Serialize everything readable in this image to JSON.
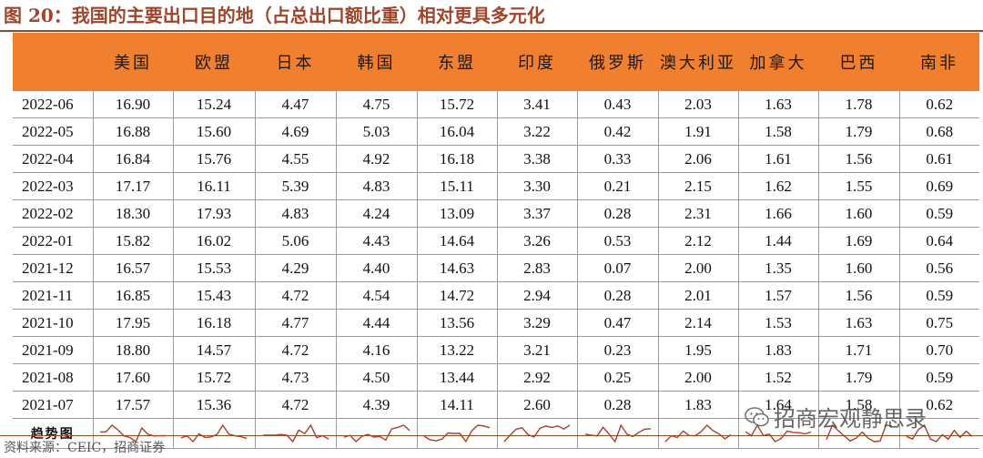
{
  "title": "图 20：我国的主要出口目的地（占总出口额比重）相对更具多元化",
  "columns": [
    "",
    "美国",
    "欧盟",
    "日本",
    "韩国",
    "东盟",
    "印度",
    "俄罗斯",
    "澳大利亚",
    "加拿大",
    "巴西",
    "南非"
  ],
  "rows": [
    {
      "date": "2022-06",
      "values": [
        "16.90",
        "15.24",
        "4.47",
        "4.75",
        "15.72",
        "3.41",
        "0.43",
        "2.03",
        "1.63",
        "1.78",
        "0.62"
      ]
    },
    {
      "date": "2022-05",
      "values": [
        "16.88",
        "15.60",
        "4.69",
        "5.03",
        "16.04",
        "3.22",
        "0.42",
        "1.91",
        "1.58",
        "1.79",
        "0.68"
      ]
    },
    {
      "date": "2022-04",
      "values": [
        "16.84",
        "15.76",
        "4.55",
        "4.92",
        "16.18",
        "3.38",
        "0.33",
        "2.06",
        "1.61",
        "1.56",
        "0.61"
      ]
    },
    {
      "date": "2022-03",
      "values": [
        "17.17",
        "16.11",
        "5.39",
        "4.83",
        "15.11",
        "3.30",
        "0.21",
        "2.15",
        "1.62",
        "1.55",
        "0.69"
      ]
    },
    {
      "date": "2022-02",
      "values": [
        "18.30",
        "17.93",
        "4.83",
        "4.24",
        "13.09",
        "3.37",
        "0.28",
        "2.31",
        "1.66",
        "1.60",
        "0.59"
      ]
    },
    {
      "date": "2022-01",
      "values": [
        "15.82",
        "16.02",
        "5.06",
        "4.43",
        "14.64",
        "3.26",
        "0.53",
        "2.12",
        "1.44",
        "1.69",
        "0.64"
      ]
    },
    {
      "date": "2021-12",
      "values": [
        "16.57",
        "15.53",
        "4.29",
        "4.40",
        "14.63",
        "2.83",
        "0.07",
        "2.00",
        "1.35",
        "1.60",
        "0.56"
      ]
    },
    {
      "date": "2021-11",
      "values": [
        "16.85",
        "15.43",
        "4.72",
        "4.54",
        "14.72",
        "2.94",
        "0.28",
        "2.01",
        "1.57",
        "1.56",
        "0.59"
      ]
    },
    {
      "date": "2021-10",
      "values": [
        "17.95",
        "16.18",
        "4.77",
        "4.44",
        "13.56",
        "3.29",
        "0.47",
        "2.14",
        "1.53",
        "1.63",
        "0.75"
      ]
    },
    {
      "date": "2021-09",
      "values": [
        "18.80",
        "14.57",
        "4.72",
        "4.16",
        "13.22",
        "3.21",
        "0.23",
        "1.95",
        "1.83",
        "1.71",
        "0.70"
      ]
    },
    {
      "date": "2021-08",
      "values": [
        "17.60",
        "15.72",
        "4.73",
        "4.50",
        "13.44",
        "2.92",
        "0.25",
        "2.00",
        "1.52",
        "1.79",
        "0.59"
      ]
    },
    {
      "date": "2021-07",
      "values": [
        "17.57",
        "15.36",
        "4.72",
        "4.39",
        "14.11",
        "2.60",
        "0.28",
        "1.83",
        "1.64",
        "1.58",
        "0.62"
      ]
    }
  ],
  "trend_label": "趋势图",
  "sparkline_color": "#a0442a",
  "accent_color": "#f07f2f",
  "source": "资料来源：CEIC，招商证券",
  "watermark": "招商宏观静思录"
}
